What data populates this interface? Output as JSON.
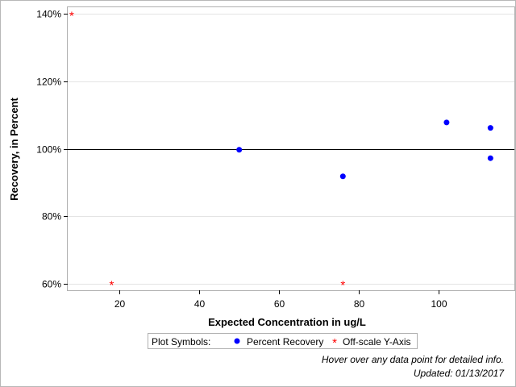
{
  "chart_data": {
    "type": "scatter",
    "xlabel": "Expected Concentration in ug/L",
    "ylabel": "Recovery, in Percent",
    "xlim": [
      7,
      119
    ],
    "ylim": [
      58,
      142
    ],
    "x_ticks": [
      20,
      40,
      60,
      80,
      100
    ],
    "y_ticks": [
      60,
      80,
      100,
      120,
      140
    ],
    "y_tick_suffix": "%",
    "reference_line": 100,
    "grid": "horizontal",
    "series": [
      {
        "name": "Percent Recovery",
        "symbol": "dot",
        "color": "#0000ff",
        "points": [
          {
            "x": 50,
            "y": 99.7
          },
          {
            "x": 76,
            "y": 91.8
          },
          {
            "x": 102,
            "y": 107.8
          },
          {
            "x": 113,
            "y": 106.2
          },
          {
            "x": 113,
            "y": 97.2
          }
        ]
      },
      {
        "name": "Off-scale Y-Axis",
        "symbol": "asterisk",
        "color": "#ff0000",
        "points": [
          {
            "x": 8,
            "y": 140
          },
          {
            "x": 18,
            "y": 60
          },
          {
            "x": 76,
            "y": 60
          }
        ]
      }
    ],
    "legend": {
      "title": "Plot Symbols:",
      "placement": "bottom-center"
    }
  },
  "footer": {
    "hover_note": "Hover over any data point for detailed info.",
    "updated": "Updated: 01/13/2017"
  }
}
